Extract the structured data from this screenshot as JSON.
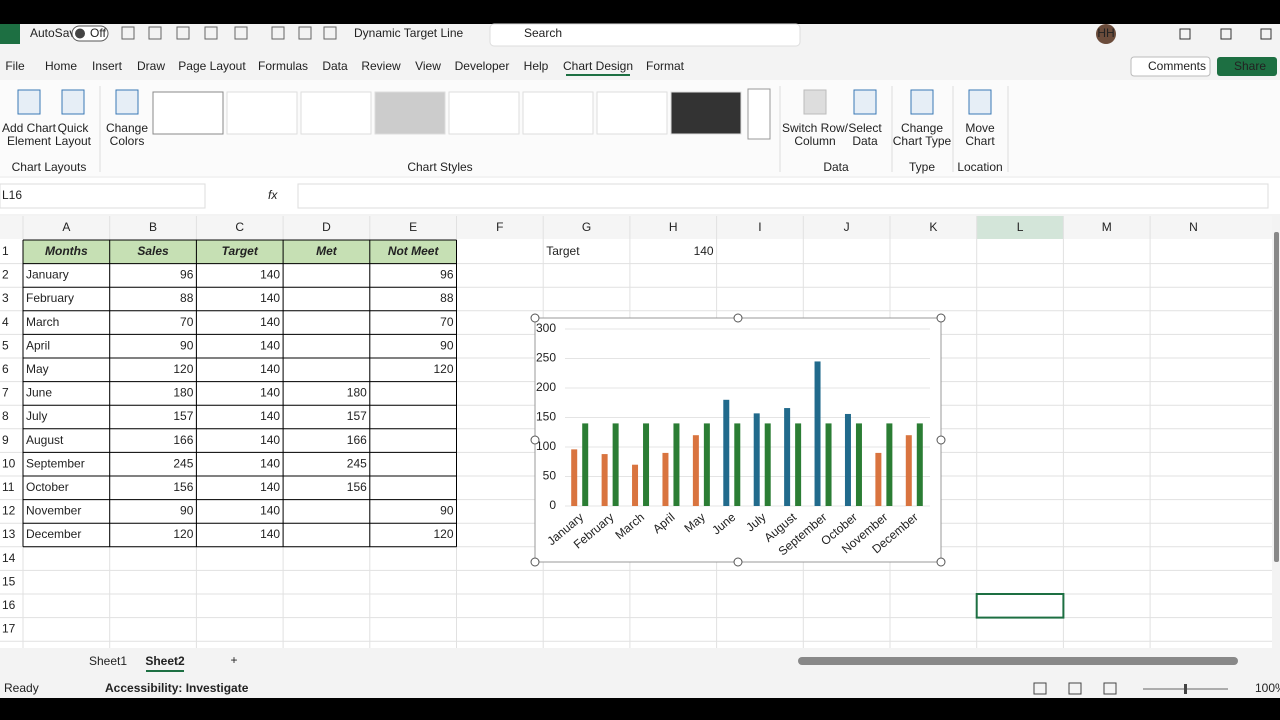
{
  "title_bar": {
    "autosave": "AutoSave",
    "toggle": "Off",
    "file_name": "Dynamic Target Line",
    "search": "Search",
    "user": "HH"
  },
  "menu": [
    "File",
    "Home",
    "Insert",
    "Draw",
    "Page Layout",
    "Formulas",
    "Data",
    "Review",
    "View",
    "Developer",
    "Help",
    "Chart Design",
    "Format"
  ],
  "buttons": {
    "comments": "Comments",
    "share": "Share"
  },
  "ribbon": {
    "buttons": [
      [
        "Add Chart",
        "Element"
      ],
      [
        "Quick",
        "Layout"
      ],
      [
        "Change",
        "Colors"
      ],
      [
        "Switch Row/",
        "Column"
      ],
      [
        "Select",
        "Data"
      ],
      [
        "Change",
        "Chart Type"
      ],
      [
        "Move",
        "Chart"
      ]
    ],
    "groups": [
      "Chart Layouts",
      "Chart Styles",
      "Data",
      "Type",
      "Location"
    ]
  },
  "name_box": "L16",
  "fx": "fx",
  "columns": [
    "A",
    "B",
    "C",
    "D",
    "E",
    "F",
    "G",
    "H",
    "I",
    "J",
    "K",
    "L",
    "M",
    "N"
  ],
  "row_numbers": [
    1,
    2,
    3,
    4,
    5,
    6,
    7,
    8,
    9,
    10,
    11,
    12,
    13,
    14,
    15,
    16,
    17
  ],
  "table": {
    "headers": [
      "Months",
      "Sales",
      "Target",
      "Met",
      "Not Meet"
    ],
    "rows": [
      [
        "January",
        96,
        140,
        null,
        96
      ],
      [
        "February",
        88,
        140,
        null,
        88
      ],
      [
        "March",
        70,
        140,
        null,
        70
      ],
      [
        "April",
        90,
        140,
        null,
        90
      ],
      [
        "May",
        120,
        140,
        null,
        120
      ],
      [
        "June",
        180,
        140,
        180,
        null
      ],
      [
        "July",
        157,
        140,
        157,
        null
      ],
      [
        "August",
        166,
        140,
        166,
        null
      ],
      [
        "September",
        245,
        140,
        245,
        null
      ],
      [
        "October",
        156,
        140,
        156,
        null
      ],
      [
        "November",
        90,
        140,
        null,
        90
      ],
      [
        "December",
        120,
        140,
        null,
        120
      ]
    ]
  },
  "target": {
    "label": "Target",
    "value": 140
  },
  "chart_data": {
    "type": "bar",
    "categories": [
      "January",
      "February",
      "March",
      "April",
      "May",
      "June",
      "July",
      "August",
      "September",
      "October",
      "November",
      "December"
    ],
    "series": [
      {
        "color": "#d9743f",
        "values": [
          96,
          88,
          70,
          90,
          120,
          null,
          null,
          null,
          null,
          null,
          90,
          120
        ]
      },
      {
        "color": "#216a8c",
        "values": [
          null,
          null,
          null,
          null,
          null,
          180,
          157,
          166,
          245,
          156,
          null,
          null
        ]
      },
      {
        "color": "#2b7d34",
        "values": [
          140,
          140,
          140,
          140,
          140,
          140,
          140,
          140,
          140,
          140,
          140,
          140
        ]
      }
    ],
    "ylim": [
      0,
      300
    ],
    "yticks": [
      0,
      50,
      100,
      150,
      200,
      250,
      300
    ],
    "grid": true
  },
  "tabs": [
    "Sheet1",
    "Sheet2"
  ],
  "status": {
    "ready": "Ready",
    "accessibility": "Accessibility: Investigate",
    "zoom": "100%"
  }
}
